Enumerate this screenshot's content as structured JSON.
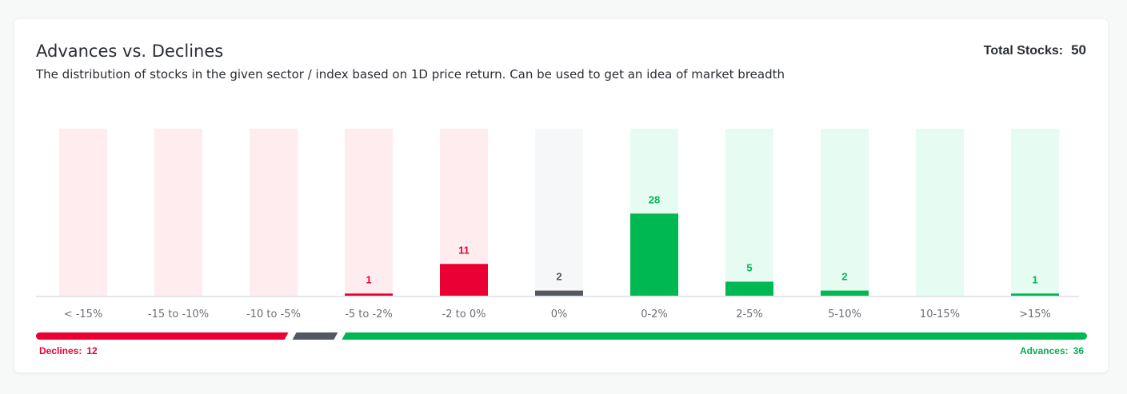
{
  "header": {
    "title": "Advances vs. Declines",
    "subtitle": "The distribution of stocks in the given sector / index based on 1D price return. Can be used to get an idea of market breadth",
    "total_label": "Total Stocks:",
    "total_value": "50"
  },
  "colors": {
    "decline": "#eb0033",
    "decline_bg": "#feecef",
    "neutral": "#535760",
    "neutral_bg": "#f6f7f9",
    "advance": "#00b852",
    "advance_bg": "#e6fbf2",
    "axis": "#e3e6ea",
    "tick_text": "#6b6f76"
  },
  "chart_data": {
    "type": "bar",
    "categories": [
      "< -15%",
      "-15 to -10%",
      "-10 to -5%",
      "-5 to -2%",
      "-2 to 0%",
      "0%",
      "0-2%",
      "2-5%",
      "5-10%",
      "10-15%",
      ">15%"
    ],
    "values": [
      0,
      0,
      0,
      1,
      11,
      2,
      28,
      5,
      2,
      0,
      1
    ],
    "groups": [
      "decline",
      "decline",
      "decline",
      "decline",
      "decline",
      "neutral",
      "advance",
      "advance",
      "advance",
      "advance",
      "advance"
    ],
    "ylim": [
      0,
      50
    ],
    "grid": false
  },
  "breadth": {
    "declines_label": "Declines:",
    "declines_value": 12,
    "unchanged_value": 2,
    "advances_label": "Advances:",
    "advances_value": 36
  }
}
